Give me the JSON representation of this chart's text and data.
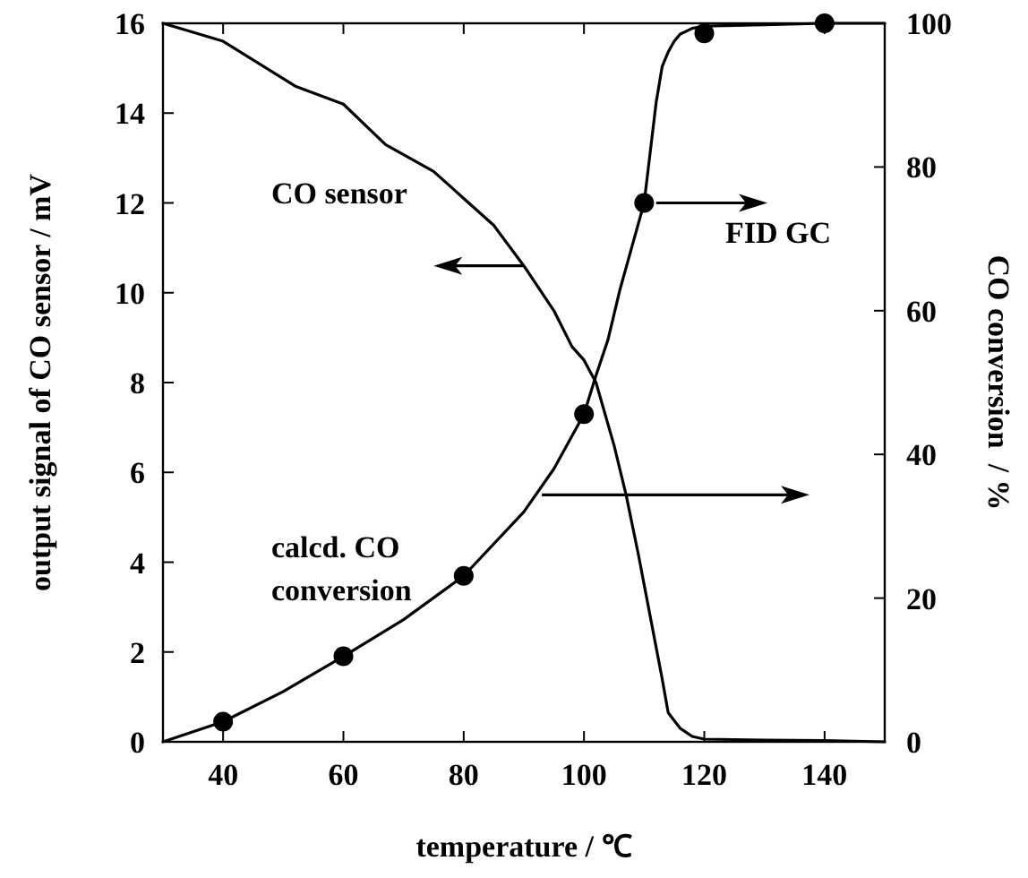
{
  "chart_data": {
    "type": "line",
    "xlabel": "temperature / ℃",
    "ylabel": "output signal of CO sensor / mV",
    "y2label": "CO conversion  / %",
    "xlim": [
      30,
      150
    ],
    "xticks": [
      40,
      60,
      80,
      100,
      120,
      140
    ],
    "ylim": [
      0,
      16
    ],
    "yticks": [
      0,
      2,
      4,
      6,
      8,
      10,
      12,
      14,
      16
    ],
    "y2lim": [
      0,
      100
    ],
    "y2ticks": [
      0,
      20,
      40,
      60,
      80,
      100
    ],
    "grid": false,
    "marker": "none",
    "line_style": "solid",
    "annotations": [
      "CO sensor",
      {
        "text": "FID GC",
        "x": 112,
        "y": 12
      },
      "calcd. CO\nconversion"
    ],
    "series": [
      {
        "color": "#000000",
        "x": [
          30,
          40,
          52,
          60,
          67,
          75,
          80,
          85,
          90,
          95,
          98,
          100,
          102,
          105,
          107,
          109,
          111,
          113,
          114,
          116,
          118,
          120,
          130,
          140,
          150
        ],
        "values": [
          16,
          15.6,
          14.6,
          14.2,
          13.3,
          12.7,
          12.1,
          11.5,
          10.6,
          9.6,
          8.8,
          8.5,
          8.0,
          6.6,
          5.5,
          4.2,
          2.8,
          1.4,
          0.65,
          0.3,
          0.12,
          0.06,
          0.04,
          0.03,
          0
        ]
      },
      {
        "color": "#000000",
        "axis": "y2",
        "x": [
          30,
          40,
          50,
          60,
          70,
          80,
          90,
          95,
          100
        ],
        "values": [
          0,
          2.8,
          7,
          11.9,
          17,
          23.1,
          32,
          38,
          45.6
        ]
      },
      {
        "type": "scatter",
        "marker": "circle",
        "color": "#000000",
        "axis": "y2",
        "x": [
          40,
          60,
          80,
          100
        ],
        "values": [
          2.8,
          11.9,
          23.1,
          45.6
        ]
      },
      {
        "color": "#000000",
        "axis": "y2",
        "x": [
          100,
          102,
          104,
          106,
          108,
          110,
          111,
          112,
          113,
          114,
          115,
          116,
          118,
          120,
          130,
          140,
          150
        ],
        "values": [
          45.6,
          51,
          56,
          63,
          69,
          75,
          82,
          89,
          94,
          96,
          97.5,
          98.5,
          99.3,
          99.6,
          99.8,
          100,
          100
        ]
      },
      {
        "type": "scatter",
        "marker": "circle",
        "color": "#000000",
        "axis": "y2",
        "x": [
          110,
          120,
          140
        ],
        "values": [
          75,
          98.6,
          100
        ]
      }
    ]
  }
}
